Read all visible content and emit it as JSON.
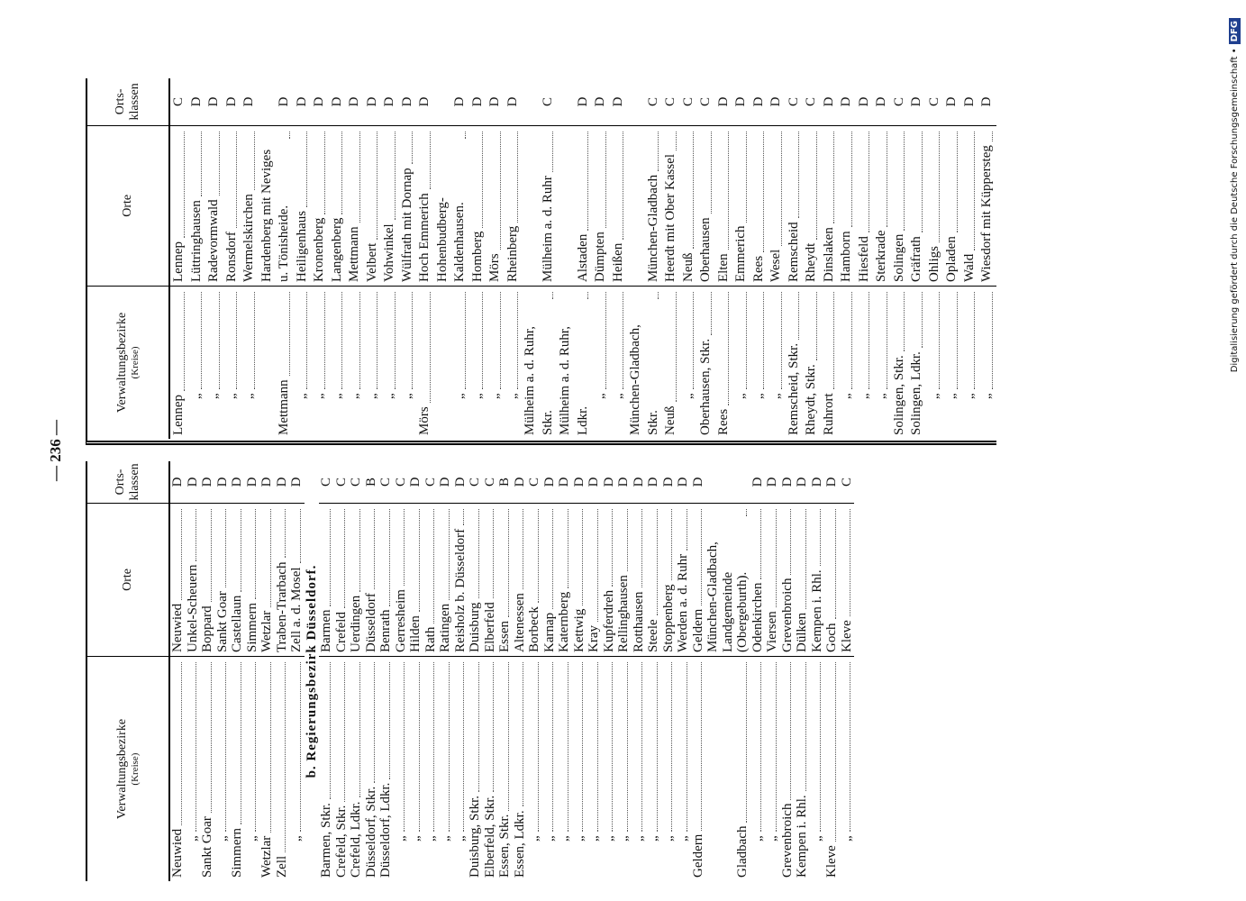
{
  "page_number": "— 236 —",
  "left_table": {
    "headers": {
      "district": "Verwaltungsbezirke",
      "district_note": "(Kreise)",
      "place": "Orte",
      "class": "Orts-\nklassen"
    },
    "rows": [
      {
        "district": "Neuwied",
        "place": "Neuwied",
        "class": "D"
      },
      {
        "district": "„",
        "place": "Unkel-Scheuern",
        "class": "D"
      },
      {
        "district": "Sankt Goar",
        "place": "Boppard",
        "class": "D"
      },
      {
        "district": "„",
        "place": "Sankt Goar",
        "class": "D"
      },
      {
        "district": "Simmern",
        "place": "Castellaun",
        "class": "D"
      },
      {
        "district": "„",
        "place": "Simmern",
        "class": "D"
      },
      {
        "district": "Wetzlar",
        "place": "Wetzlar",
        "class": "D"
      },
      {
        "district": "Zell",
        "place": "Traben-Trarbach",
        "class": "D"
      },
      {
        "district": "„",
        "place": "Zell a. d. Mosel",
        "class": "D"
      },
      {
        "section": "b. Regierungsbezirk Düsseldorf."
      },
      {
        "district": "Barmen, Stkr.",
        "place": "Barmen",
        "class": "C"
      },
      {
        "district": "Crefeld, Stkr.",
        "place": "Crefeld",
        "class": "C"
      },
      {
        "district": "Crefeld, Ldkr.",
        "place": "Uerdingen",
        "class": "C"
      },
      {
        "district": "Düsseldorf, Stkr.",
        "place": "Düsseldorf",
        "class": "B"
      },
      {
        "district": "Düsseldorf, Ldkr.",
        "place": "Benrath",
        "class": "C"
      },
      {
        "district": "„",
        "place": "Gerresheim",
        "class": "C"
      },
      {
        "district": "„",
        "place": "Hilden",
        "class": "D"
      },
      {
        "district": "„",
        "place": "Rath",
        "class": "C"
      },
      {
        "district": "„",
        "place": "Ratingen",
        "class": "D"
      },
      {
        "district": "„",
        "place": "Reisholz b. Düsseldorf",
        "class": "D"
      },
      {
        "district": "Duisburg, Stkr.",
        "place": "Duisburg",
        "class": "C"
      },
      {
        "district": "Elberfeld, Stkr.",
        "place": "Elberfeld",
        "class": "C"
      },
      {
        "district": "Essen, Stkr.",
        "place": "Essen",
        "class": "B"
      },
      {
        "district": "Essen, Ldkr.",
        "place": "Altenessen",
        "class": "D"
      },
      {
        "district": "„",
        "place": "Borbeck",
        "class": "C"
      },
      {
        "district": "„",
        "place": "Karnap",
        "class": "D"
      },
      {
        "district": "„",
        "place": "Katernberg",
        "class": "D"
      },
      {
        "district": "„",
        "place": "Kettwig",
        "class": "D"
      },
      {
        "district": "„",
        "place": "Kray",
        "class": "D"
      },
      {
        "district": "„",
        "place": "Kupferdreh",
        "class": "D"
      },
      {
        "district": "„",
        "place": "Rellinghausen",
        "class": "D"
      },
      {
        "district": "„",
        "place": "Rotthausen",
        "class": "D"
      },
      {
        "district": "„",
        "place": "Steele",
        "class": "D"
      },
      {
        "district": "„",
        "place": "Stoppenberg",
        "class": "D"
      },
      {
        "district": "„",
        "place": "Werden a. d. Ruhr",
        "class": "D"
      },
      {
        "district": "Geldern",
        "place": "Geldern",
        "class": "D"
      },
      {
        "district": "Gladbach",
        "place": "München-Gladbach, Landgemeinde (Obergeburth)."
      },
      {
        "district": "„",
        "place": "Odenkirchen",
        "class": "D"
      },
      {
        "district": "„",
        "place": "Viersen",
        "class": "D"
      },
      {
        "district": "Grevenbroich",
        "place": "Grevenbroich",
        "class": "D"
      },
      {
        "district": "Kempen i. Rhl.",
        "place": "Dülken",
        "class": "D"
      },
      {
        "district": "„",
        "place": "Kempen i. Rhl.",
        "class": "D"
      },
      {
        "district": "Kleve",
        "place": "Goch",
        "class": "D"
      },
      {
        "district": "„",
        "place": "Kleve",
        "class": "C"
      }
    ]
  },
  "right_table": {
    "headers": {
      "district": "Verwaltungsbezirke",
      "district_note": "(Kreise)",
      "place": "Orte",
      "class": "Orts-\nklassen"
    },
    "rows": [
      {
        "district": "Lennep",
        "place": "Lennep",
        "class": "C"
      },
      {
        "district": "„",
        "place": "Lüttringhausen",
        "class": "D"
      },
      {
        "district": "„",
        "place": "Radevormwald",
        "class": "D"
      },
      {
        "district": "„",
        "place": "Ronsdorf",
        "class": "D"
      },
      {
        "district": "„",
        "place": "Wermelskirchen",
        "class": "D"
      },
      {
        "district": "Mettmann",
        "place": "Hardenberg mit Neviges u. Tönisheide.",
        "class": "D"
      },
      {
        "district": "„",
        "place": "Heiligenhaus",
        "class": "D"
      },
      {
        "district": "„",
        "place": "Kronenberg",
        "class": "D"
      },
      {
        "district": "„",
        "place": "Langenberg",
        "class": "D"
      },
      {
        "district": "„",
        "place": "Mettmann",
        "class": "D"
      },
      {
        "district": "„",
        "place": "Velbert",
        "class": "D"
      },
      {
        "district": "„",
        "place": "Vohwinkel",
        "class": "D"
      },
      {
        "district": "„",
        "place": "Wülfrath mit Dornap",
        "class": "D"
      },
      {
        "district": "Mörs",
        "place": "Hoch Emmerich",
        "class": "D"
      },
      {
        "district": "„",
        "place": "Hohenbudberg-Kaldenhausen.",
        "class": "D"
      },
      {
        "district": "„",
        "place": "Homberg",
        "class": "D"
      },
      {
        "district": "„",
        "place": "Mörs",
        "class": "D"
      },
      {
        "district": "„",
        "place": "Rheinberg",
        "class": "D"
      },
      {
        "district": "Mülheim a. d. Ruhr, Stkr.",
        "place": "Mülheim a. d. Ruhr",
        "class": "C"
      },
      {
        "district": "Mülheim a. d. Ruhr, Ldkr.",
        "place": "Alstaden",
        "class": "D"
      },
      {
        "district": "„",
        "place": "Dümpten",
        "class": "D"
      },
      {
        "district": "„",
        "place": "Heißen",
        "class": "D"
      },
      {
        "district": "München-Gladbach, Stkr.",
        "place": "München-Gladbach",
        "class": "C"
      },
      {
        "district": "Neuß",
        "place": "Heerdt mit Ober Kassel",
        "class": "C"
      },
      {
        "district": "„",
        "place": "Neuß",
        "class": "C"
      },
      {
        "district": "Oberhausen, Stkr.",
        "place": "Oberhausen",
        "class": "C"
      },
      {
        "district": "Rees",
        "place": "Elten",
        "class": "D"
      },
      {
        "district": "„",
        "place": "Emmerich",
        "class": "D"
      },
      {
        "district": "„",
        "place": "Rees",
        "class": "D"
      },
      {
        "district": "„",
        "place": "Wesel",
        "class": "D"
      },
      {
        "district": "Remscheid, Stkr.",
        "place": "Remscheid",
        "class": "C"
      },
      {
        "district": "Rheydt, Stkr.",
        "place": "Rheydt",
        "class": "C"
      },
      {
        "district": "Ruhrort",
        "place": "Dinslaken",
        "class": "D"
      },
      {
        "district": "„",
        "place": "Hamborn",
        "class": "D"
      },
      {
        "district": "„",
        "place": "Hiesfeld",
        "class": "D"
      },
      {
        "district": "„",
        "place": "Sterkrade",
        "class": "D"
      },
      {
        "district": "Solingen, Stkr.",
        "place": "Solingen",
        "class": "C"
      },
      {
        "district": "Solingen, Ldkr.",
        "place": "Gräfrath",
        "class": "D"
      },
      {
        "district": "„",
        "place": "Ohligs",
        "class": "C"
      },
      {
        "district": "„",
        "place": "Opladen",
        "class": "D"
      },
      {
        "district": "„",
        "place": "Wald",
        "class": "D"
      },
      {
        "district": "„",
        "place": "Wiesdorf mit Küppersteg",
        "class": "D"
      }
    ]
  },
  "footer": "Digitalisierung gefördert durch die Deutsche Forschungsgemeinschaft •",
  "footer_logo": "DFG"
}
